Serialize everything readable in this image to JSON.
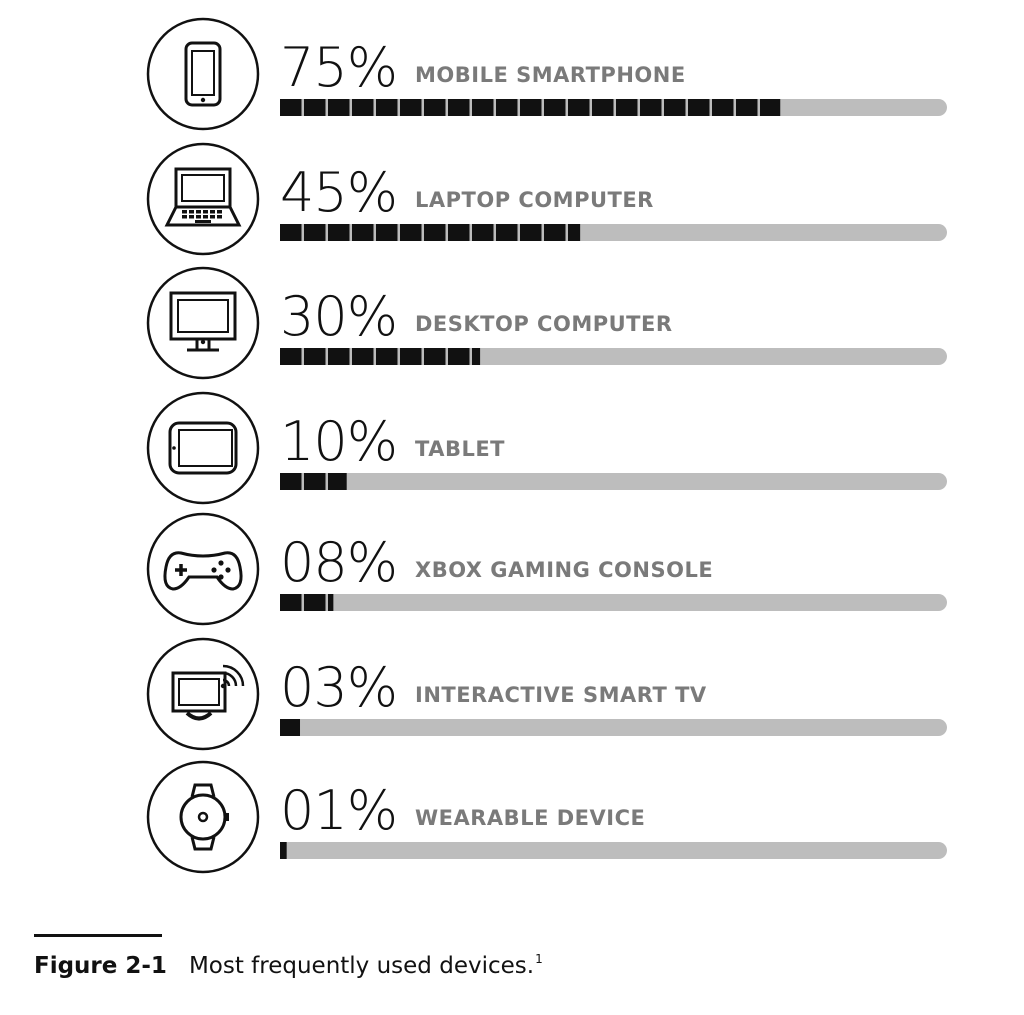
{
  "chart_data": {
    "type": "bar",
    "categories": [
      "MOBILE SMARTPHONE",
      "LAPTOP COMPUTER",
      "DESKTOP COMPUTER",
      "TABLET",
      "XBOX GAMING CONSOLE",
      "INTERACTIVE SMART TV",
      "WEARABLE DEVICE"
    ],
    "values": [
      75,
      45,
      30,
      10,
      8,
      3,
      1
    ],
    "value_labels": [
      "75%",
      "45%",
      "30%",
      "10%",
      "08%",
      "03%",
      "01%"
    ],
    "icons": [
      "smartphone-icon",
      "laptop-icon",
      "desktop-icon",
      "tablet-icon",
      "gamepad-icon",
      "smart-tv-icon",
      "watch-icon"
    ],
    "ylim": [
      0,
      100
    ],
    "orientation": "horizontal",
    "colors": {
      "fill": "#111111",
      "track": "#bdbdbd",
      "label": "#7a7a7a"
    }
  },
  "caption": {
    "figure_label": "Figure 2-1",
    "text": "Most frequently used devices.",
    "footnote": "1"
  }
}
